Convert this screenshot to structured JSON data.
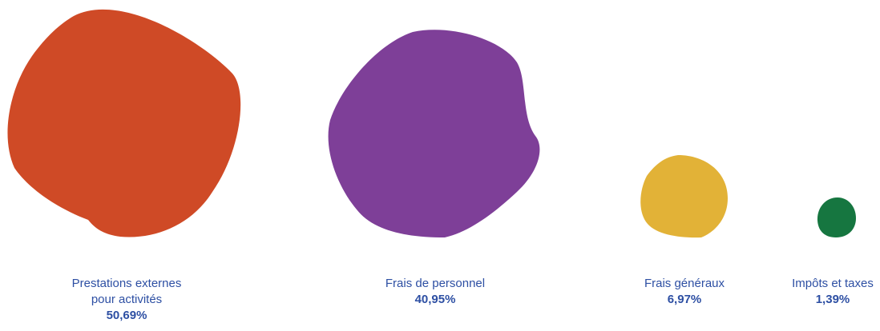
{
  "chart_data": {
    "type": "bubble",
    "title": "",
    "categories": [
      {
        "label_lines": [
          "Prestations externes",
          "pour activités"
        ],
        "value_label": "50,69%",
        "value": 50.69,
        "color": "#cf4a26"
      },
      {
        "label_lines": [
          "Frais de personnel"
        ],
        "value_label": "40,95%",
        "value": 40.95,
        "color": "#7e3f98"
      },
      {
        "label_lines": [
          "Frais généraux"
        ],
        "value_label": "6,97%",
        "value": 6.97,
        "color": "#e2b237"
      },
      {
        "label_lines": [
          "Impôts et taxes"
        ],
        "value_label": "1,39%",
        "value": 1.39,
        "color": "#167640"
      }
    ],
    "legend": "none",
    "grid": false
  }
}
